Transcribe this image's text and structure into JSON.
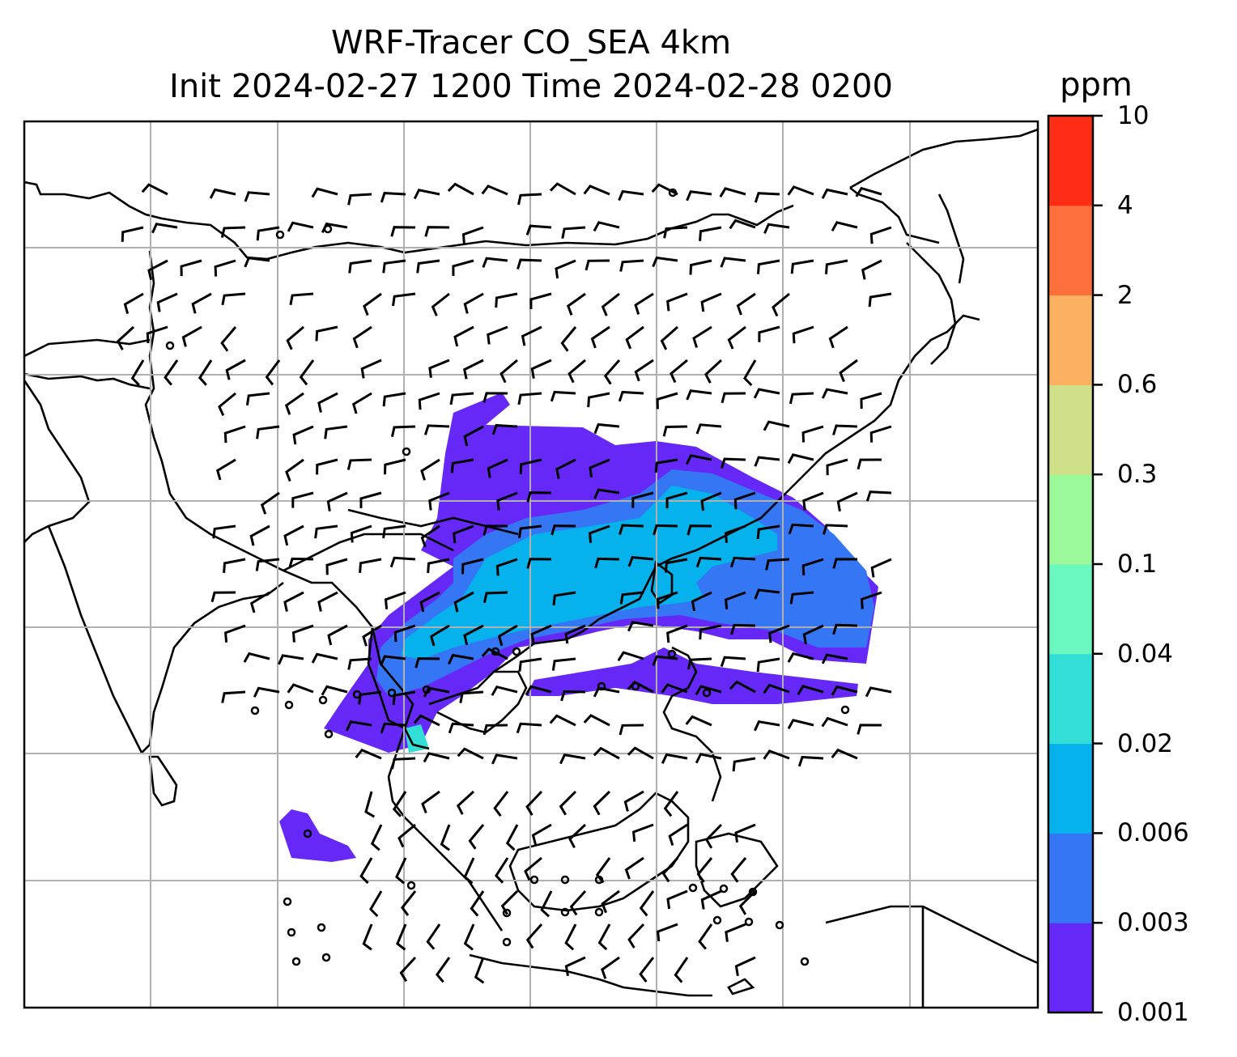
{
  "title": {
    "line1": "WRF-Tracer CO_SEA 4km",
    "line2": "Init 2024-02-27 1200 Time 2024-02-28 0200"
  },
  "colorbar": {
    "units": "ppm",
    "levels": [
      "0.001",
      "0.003",
      "0.006",
      "0.02",
      "0.04",
      "0.1",
      "0.3",
      "0.6",
      "2",
      "4",
      "10"
    ],
    "colors": [
      "#6528f7",
      "#3476f4",
      "#06b2ec",
      "#32dfd6",
      "#6bf8bf",
      "#9cf99a",
      "#d0e088",
      "#fcb161",
      "#fd703c",
      "#fe2d16"
    ]
  },
  "map": {
    "field": "CO_SEA tracer concentration",
    "gridlines": true
  }
}
